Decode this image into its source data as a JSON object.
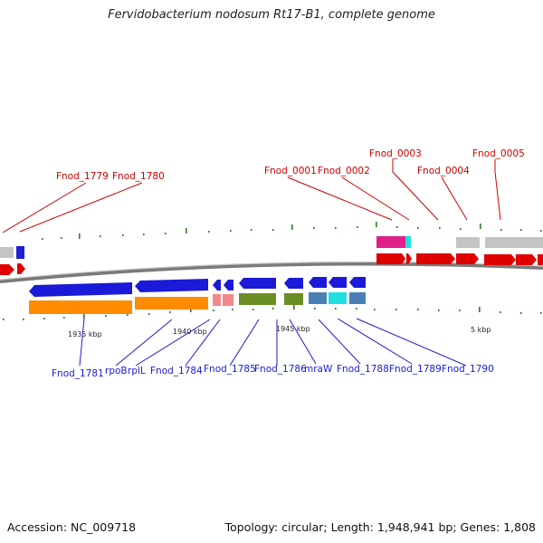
{
  "title": "Fervidobacterium nodosum Rt17-B1, complete genome",
  "accession": "Accession: NC_009718",
  "topology": "Topology: circular; Length: 1,948,941 bp; Genes: 1,808",
  "colors": {
    "forward_label": "#cc0000",
    "reverse_label": "#0000cc",
    "tick": "#2e7d20",
    "backbone": "#7a7a7a"
  },
  "scale_labels": [
    "1935 kbp",
    "1940 kbp",
    "1945 kbp",
    "5 kbp"
  ],
  "forward_labels": [
    "Fnod_1779",
    "Fnod_1780",
    "Fnod_0001",
    "Fnod_0002",
    "Fnod_0003",
    "Fnod_0004",
    "Fnod_0005"
  ],
  "reverse_labels": [
    "Fnod_1781",
    "rpoB",
    "rplL",
    "Fnod_1784",
    "Fnod_1785",
    "Fnod_1786",
    "mraW",
    "Fnod_1788",
    "Fnod_1789",
    "Fnod_1790"
  ]
}
